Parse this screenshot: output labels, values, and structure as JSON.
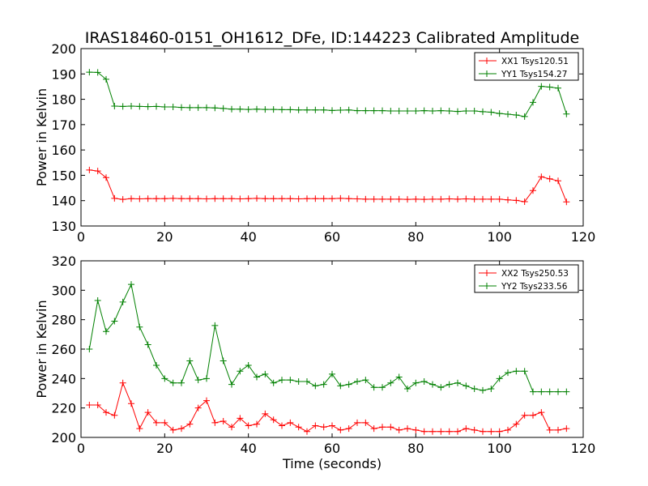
{
  "chart_data": [
    {
      "type": "line",
      "title": "IRAS18460-0151_OH1612_DFe, ID:144223 Calibrated Amplitude",
      "xlabel": "",
      "ylabel": "Power in Kelvin",
      "xlim": [
        0,
        120
      ],
      "ylim": [
        130,
        200
      ],
      "xticks": [
        0,
        20,
        40,
        60,
        80,
        100,
        120
      ],
      "yticks": [
        130,
        140,
        150,
        160,
        170,
        180,
        190,
        200
      ],
      "grid": false,
      "legend_position": "top-right",
      "x": [
        2,
        4,
        6,
        8,
        10,
        12,
        14,
        16,
        18,
        20,
        22,
        24,
        26,
        28,
        30,
        32,
        34,
        36,
        38,
        40,
        42,
        44,
        46,
        48,
        50,
        52,
        54,
        56,
        58,
        60,
        62,
        64,
        66,
        68,
        70,
        72,
        74,
        76,
        78,
        80,
        82,
        84,
        86,
        88,
        90,
        92,
        94,
        96,
        98,
        100,
        102,
        104,
        106,
        108,
        110,
        112,
        114,
        116
      ],
      "series": [
        {
          "name": "XX1 Tsys120.51",
          "color": "#ff0000",
          "values": [
            152.1,
            151.7,
            149.1,
            140.9,
            140.5,
            140.8,
            140.7,
            140.8,
            140.8,
            140.8,
            140.9,
            140.8,
            140.8,
            140.8,
            140.7,
            140.8,
            140.8,
            140.8,
            140.7,
            140.8,
            140.9,
            140.8,
            140.8,
            140.8,
            140.8,
            140.7,
            140.8,
            140.8,
            140.8,
            140.8,
            140.9,
            140.8,
            140.7,
            140.6,
            140.6,
            140.6,
            140.6,
            140.6,
            140.5,
            140.6,
            140.5,
            140.6,
            140.6,
            140.7,
            140.6,
            140.7,
            140.6,
            140.6,
            140.6,
            140.6,
            140.3,
            140.1,
            139.6,
            144.0,
            149.4,
            148.6,
            147.8,
            139.5
          ]
        },
        {
          "name": "YY1 Tsys154.27",
          "color": "#008000",
          "values": [
            190.7,
            190.6,
            187.9,
            177.3,
            177.2,
            177.3,
            177.2,
            177.1,
            177.2,
            177.0,
            177.0,
            176.8,
            176.7,
            176.7,
            176.7,
            176.6,
            176.4,
            176.1,
            176.1,
            176.0,
            176.1,
            176.0,
            176.0,
            175.9,
            175.9,
            175.8,
            175.8,
            175.8,
            175.8,
            175.6,
            175.7,
            175.8,
            175.5,
            175.5,
            175.5,
            175.5,
            175.4,
            175.4,
            175.4,
            175.4,
            175.5,
            175.4,
            175.5,
            175.4,
            175.2,
            175.4,
            175.4,
            175.1,
            174.9,
            174.4,
            174.1,
            173.8,
            173.2,
            178.8,
            185.1,
            184.8,
            184.4,
            174.2
          ]
        }
      ]
    },
    {
      "type": "line",
      "title": "",
      "xlabel": "Time (seconds)",
      "ylabel": "Power in Kelvin",
      "xlim": [
        0,
        120
      ],
      "ylim": [
        200,
        320
      ],
      "xticks": [
        0,
        20,
        40,
        60,
        80,
        100,
        120
      ],
      "yticks": [
        200,
        220,
        240,
        260,
        280,
        300,
        320
      ],
      "grid": false,
      "legend_position": "top-right",
      "x": [
        2,
        4,
        6,
        8,
        10,
        12,
        14,
        16,
        18,
        20,
        22,
        24,
        26,
        28,
        30,
        32,
        34,
        36,
        38,
        40,
        42,
        44,
        46,
        48,
        50,
        52,
        54,
        56,
        58,
        60,
        62,
        64,
        66,
        68,
        70,
        72,
        74,
        76,
        78,
        80,
        82,
        84,
        86,
        88,
        90,
        92,
        94,
        96,
        98,
        100,
        102,
        104,
        106,
        108,
        110,
        112,
        114,
        116
      ],
      "series": [
        {
          "name": "XX2 Tsys250.53",
          "color": "#ff0000",
          "values": [
            222,
            222,
            217,
            215,
            237,
            223,
            206,
            217,
            210,
            210,
            205,
            206,
            209,
            220,
            225,
            210,
            211,
            207,
            213,
            208,
            209,
            216,
            212,
            208,
            210,
            207,
            204,
            208,
            207,
            208,
            205,
            206,
            210,
            210,
            206,
            207,
            207,
            205,
            206,
            205,
            204,
            204,
            204,
            204,
            204,
            206,
            205,
            204,
            204,
            204,
            205,
            209,
            215,
            215,
            217,
            205,
            205,
            206
          ]
        },
        {
          "name": "YY2 Tsys233.56",
          "color": "#008000",
          "values": [
            260,
            293,
            272,
            279,
            292,
            304,
            275,
            263,
            249,
            240,
            237,
            237,
            252,
            239,
            240,
            276,
            252,
            236,
            245,
            249,
            241,
            243,
            237,
            239,
            239,
            238,
            238,
            235,
            236,
            243,
            235,
            236,
            238,
            239,
            234,
            234,
            237,
            241,
            233,
            237,
            238,
            236,
            234,
            236,
            237,
            235,
            233,
            232,
            233,
            240,
            244,
            245,
            245,
            231,
            231,
            231,
            231,
            231
          ]
        }
      ]
    }
  ]
}
